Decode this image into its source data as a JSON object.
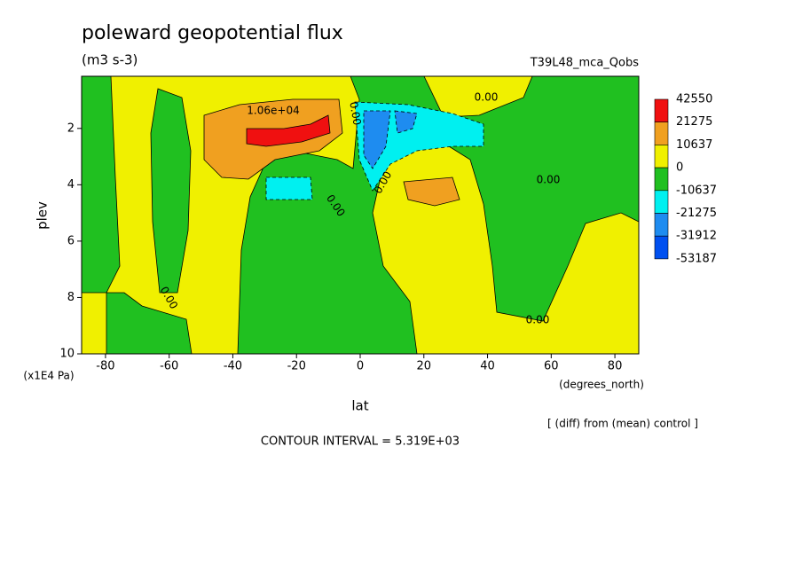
{
  "chart_data": {
    "type": "contour",
    "title": "poleward geopotential flux",
    "subtitle": "(m3 s-3)",
    "experiment": "T39L48_mca_Qobs",
    "xlabel": "lat",
    "xunits": "(degrees_north)",
    "ylabel": "plev",
    "yunits": "(x1E4 Pa)",
    "note": "[ (diff) from (mean) control ]",
    "contour_interval": "CONTOUR INTERVAL = 5.319E+03",
    "contour_labels": [
      "1.06e+04",
      "0.00",
      "0.00",
      "0.00",
      "0.00",
      "0.00",
      "0.00",
      "0.00"
    ],
    "xlim": [
      -87.5,
      87.5
    ],
    "ylim": [
      10,
      0.15
    ],
    "xticks": [
      -80,
      -60,
      -40,
      -20,
      0,
      20,
      40,
      60,
      80
    ],
    "yticks": [
      2,
      4,
      6,
      8,
      10
    ],
    "colorbar": {
      "levels": [
        42550,
        21275,
        10637,
        0,
        -10637,
        -21275,
        -31912,
        -53187
      ],
      "colors": [
        "#f01010",
        "#f0a020",
        "#f0f000",
        "#20c020",
        "#00f0f0",
        "#1e8cf0",
        "#0050f0"
      ]
    }
  }
}
